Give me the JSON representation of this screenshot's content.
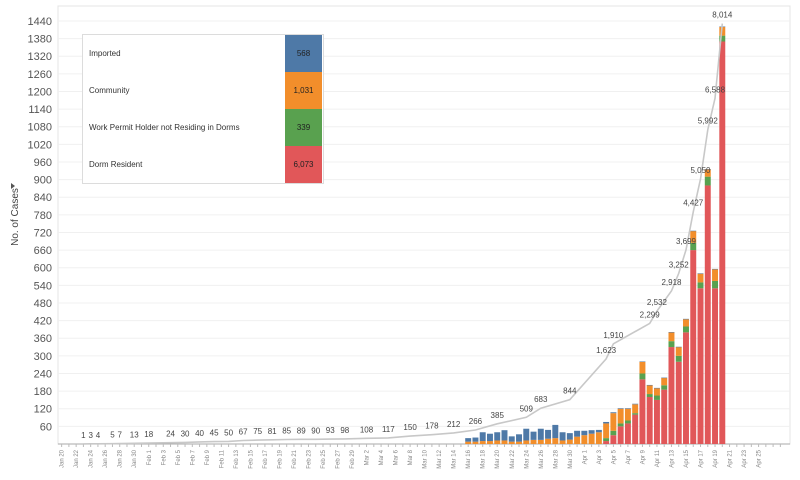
{
  "chart_data": {
    "type": "bar",
    "stacked": true,
    "ylabel": "No. of Cases",
    "ylim": [
      0,
      1450
    ],
    "yticks": [
      60,
      120,
      180,
      240,
      300,
      360,
      420,
      480,
      540,
      600,
      660,
      720,
      780,
      840,
      900,
      960,
      1020,
      1080,
      1140,
      1200,
      1260,
      1320,
      1380,
      1440
    ],
    "x_tick_labels": [
      "Jan 20",
      "Jan 22",
      "Jan 24",
      "Jan 26",
      "Jan 28",
      "Jan 30",
      "Feb 1",
      "Feb 3",
      "Feb 5",
      "Feb 7",
      "Feb 9",
      "Feb 11",
      "Feb 13",
      "Feb 15",
      "Feb 17",
      "Feb 19",
      "Feb 21",
      "Feb 23",
      "Feb 25",
      "Feb 27",
      "Feb 29",
      "Mar 2",
      "Mar 4",
      "Mar 6",
      "Mar 8",
      "Mar 10",
      "Mar 12",
      "Mar 14",
      "Mar 16",
      "Mar 18",
      "Mar 20",
      "Mar 22",
      "Mar 24",
      "Mar 26",
      "Mar 28",
      "Mar 30",
      "Apr 1",
      "Apr 3",
      "Apr 5",
      "Apr 7",
      "Apr 9",
      "Apr 11",
      "Apr 13",
      "Apr 15",
      "Apr 17",
      "Apr 19",
      "Apr 21",
      "Apr 23",
      "Apr 25"
    ],
    "legend": {
      "placement": "top-left",
      "entries": [
        {
          "name": "Imported",
          "total": "568",
          "color": "#4e79a7"
        },
        {
          "name": "Community",
          "total": "1,031",
          "color": "#f28e2b"
        },
        {
          "name": "Work Permit Holder not Residing in Dorms",
          "total": "339",
          "color": "#59a14f"
        },
        {
          "name": "Dorm Resident",
          "total": "6,073",
          "color": "#e15759"
        }
      ]
    },
    "series_colors": [
      "#4e79a7",
      "#f28e2b",
      "#59a14f",
      "#e15759"
    ],
    "daily": [
      {
        "x": "Mar 16",
        "values": [
          12,
          8,
          0,
          0
        ]
      },
      {
        "x": "Mar 17",
        "values": [
          14,
          8,
          0,
          0
        ]
      },
      {
        "x": "Mar 18",
        "values": [
          30,
          10,
          0,
          0
        ]
      },
      {
        "x": "Mar 19",
        "values": [
          25,
          10,
          0,
          0
        ]
      },
      {
        "x": "Mar 20",
        "values": [
          28,
          12,
          0,
          0
        ]
      },
      {
        "x": "Mar 21",
        "values": [
          35,
          12,
          0,
          0
        ]
      },
      {
        "x": "Mar 22",
        "values": [
          18,
          8,
          0,
          0
        ]
      },
      {
        "x": "Mar 23",
        "values": [
          25,
          8,
          0,
          0
        ]
      },
      {
        "x": "Mar 24",
        "values": [
          40,
          12,
          0,
          0
        ]
      },
      {
        "x": "Mar 25",
        "values": [
          28,
          14,
          0,
          0
        ]
      },
      {
        "x": "Mar 26",
        "values": [
          38,
          14,
          0,
          0
        ]
      },
      {
        "x": "Mar 27",
        "values": [
          30,
          18,
          0,
          0
        ]
      },
      {
        "x": "Mar 28",
        "values": [
          45,
          20,
          0,
          0
        ]
      },
      {
        "x": "Mar 29",
        "values": [
          28,
          12,
          0,
          0
        ]
      },
      {
        "x": "Mar 30",
        "values": [
          22,
          15,
          0,
          0
        ]
      },
      {
        "x": "Mar 31",
        "values": [
          20,
          25,
          0,
          0
        ]
      },
      {
        "x": "Apr 1",
        "values": [
          15,
          30,
          0,
          0
        ]
      },
      {
        "x": "Apr 2",
        "values": [
          12,
          35,
          0,
          0
        ]
      },
      {
        "x": "Apr 3",
        "values": [
          8,
          40,
          0,
          0
        ]
      },
      {
        "x": "Apr 4",
        "values": [
          5,
          50,
          10,
          10
        ]
      },
      {
        "x": "Apr 5",
        "values": [
          3,
          60,
          15,
          30
        ]
      },
      {
        "x": "Apr 6",
        "values": [
          2,
          50,
          10,
          60
        ]
      },
      {
        "x": "Apr 7",
        "values": [
          2,
          40,
          10,
          70
        ]
      },
      {
        "x": "Apr 8",
        "values": [
          2,
          30,
          5,
          100
        ]
      },
      {
        "x": "Apr 9",
        "values": [
          1,
          40,
          20,
          220
        ]
      },
      {
        "x": "Apr 10",
        "values": [
          1,
          30,
          10,
          160
        ]
      },
      {
        "x": "Apr 11",
        "values": [
          1,
          25,
          15,
          150
        ]
      },
      {
        "x": "Apr 12",
        "values": [
          1,
          25,
          15,
          185
        ]
      },
      {
        "x": "Apr 13",
        "values": [
          1,
          30,
          20,
          330
        ]
      },
      {
        "x": "Apr 14",
        "values": [
          1,
          30,
          20,
          280
        ]
      },
      {
        "x": "Apr 15",
        "values": [
          1,
          25,
          20,
          380
        ]
      },
      {
        "x": "Apr 16",
        "values": [
          1,
          40,
          25,
          660
        ]
      },
      {
        "x": "Apr 17",
        "values": [
          1,
          30,
          20,
          530
        ]
      },
      {
        "x": "Apr 18",
        "values": [
          1,
          25,
          30,
          880
        ]
      },
      {
        "x": "Apr 19",
        "values": [
          1,
          40,
          25,
          530
        ]
      },
      {
        "x": "Apr 20",
        "values": [
          1,
          30,
          20,
          1370
        ]
      }
    ],
    "cumulative_labels": [
      {
        "x": "Jan 23",
        "label": "1"
      },
      {
        "x": "Jan 24",
        "label": "3"
      },
      {
        "x": "Jan 25",
        "label": "4"
      },
      {
        "x": "Jan 27",
        "label": "5"
      },
      {
        "x": "Jan 28",
        "label": "7"
      },
      {
        "x": "Jan 30",
        "label": "13"
      },
      {
        "x": "Feb 1",
        "label": "18"
      },
      {
        "x": "Feb 4",
        "label": "24"
      },
      {
        "x": "Feb 6",
        "label": "30"
      },
      {
        "x": "Feb 8",
        "label": "40"
      },
      {
        "x": "Feb 10",
        "label": "45"
      },
      {
        "x": "Feb 12",
        "label": "50"
      },
      {
        "x": "Feb 14",
        "label": "67"
      },
      {
        "x": "Feb 16",
        "label": "75"
      },
      {
        "x": "Feb 18",
        "label": "81"
      },
      {
        "x": "Feb 20",
        "label": "85"
      },
      {
        "x": "Feb 22",
        "label": "89"
      },
      {
        "x": "Feb 24",
        "label": "90"
      },
      {
        "x": "Feb 26",
        "label": "93"
      },
      {
        "x": "Feb 28",
        "label": "98"
      },
      {
        "x": "Mar 2",
        "label": "108"
      },
      {
        "x": "Mar 5",
        "label": "117"
      },
      {
        "x": "Mar 8",
        "label": "150"
      },
      {
        "x": "Mar 11",
        "label": "178"
      },
      {
        "x": "Mar 14",
        "label": "212"
      },
      {
        "x": "Mar 17",
        "label": "266"
      },
      {
        "x": "Mar 20",
        "label": "385"
      },
      {
        "x": "Mar 24",
        "label": "509"
      },
      {
        "x": "Mar 26",
        "label": "683"
      },
      {
        "x": "Mar 30",
        "label": "844"
      },
      {
        "x": "Apr 4",
        "label": "1,623"
      },
      {
        "x": "Apr 5",
        "label": "1,910"
      },
      {
        "x": "Apr 10",
        "label": "2,299"
      },
      {
        "x": "Apr 11",
        "label": "2,532"
      },
      {
        "x": "Apr 13",
        "label": "2,918"
      },
      {
        "x": "Apr 14",
        "label": "3,252"
      },
      {
        "x": "Apr 15",
        "label": "3,699"
      },
      {
        "x": "Apr 16",
        "label": "4,427"
      },
      {
        "x": "Apr 17",
        "label": "5,050"
      },
      {
        "x": "Apr 18",
        "label": "5,992"
      },
      {
        "x": "Apr 19",
        "label": "6,588"
      },
      {
        "x": "Apr 20",
        "label": "8,014"
      }
    ]
  }
}
